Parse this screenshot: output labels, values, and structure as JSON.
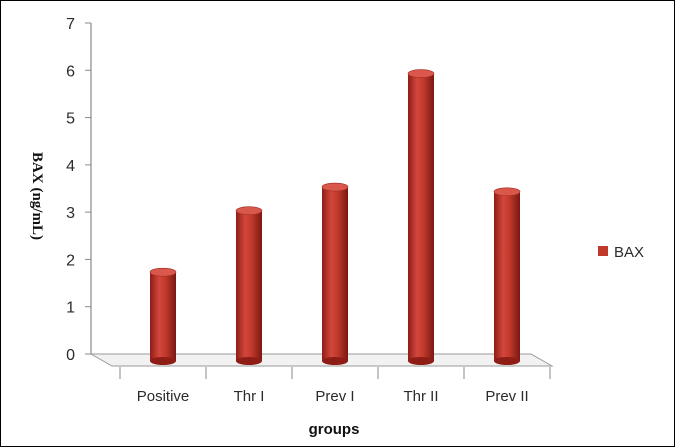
{
  "chart_data": {
    "type": "bar",
    "style": "3d-cylinder",
    "categories": [
      "Positive",
      "Thr I",
      "Prev I",
      "Thr II",
      "Prev II"
    ],
    "series": [
      {
        "name": "BAX",
        "values": [
          1.9,
          3.2,
          3.7,
          6.1,
          3.6
        ],
        "color": "#c0392b"
      }
    ],
    "xlabel": "groups",
    "ylabel": "BAX (ng/mL)",
    "ylim": [
      0,
      7
    ],
    "yticks": [
      "0",
      "1",
      "2",
      "3",
      "4",
      "5",
      "6",
      "7"
    ],
    "grid": false,
    "legend_position": "right"
  }
}
